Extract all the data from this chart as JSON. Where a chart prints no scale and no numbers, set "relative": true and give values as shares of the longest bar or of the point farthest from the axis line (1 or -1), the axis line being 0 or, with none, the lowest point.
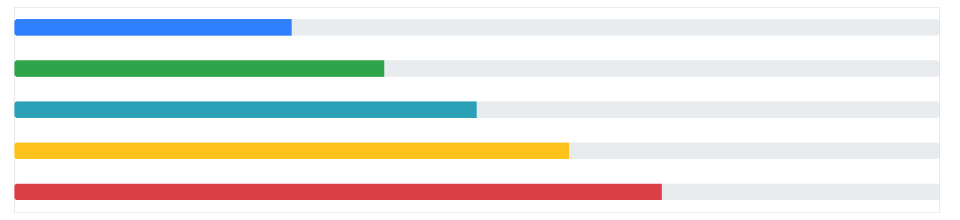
{
  "chart_data": {
    "type": "bar",
    "orientation": "horizontal",
    "stacked": true,
    "relative": true,
    "categories": [
      null,
      null,
      null,
      null,
      null
    ],
    "series": [
      {
        "colors": [
          "#2f7ffe",
          "#2ea54a",
          "#2ba1b8",
          "#fdc21b",
          "#da3f48"
        ],
        "values": [
          0.3,
          0.4,
          0.5,
          0.6,
          0.7
        ]
      },
      {
        "color": "#e9ecef",
        "values": [
          0.7,
          0.6,
          0.5,
          0.4,
          0.3
        ]
      }
    ]
  }
}
